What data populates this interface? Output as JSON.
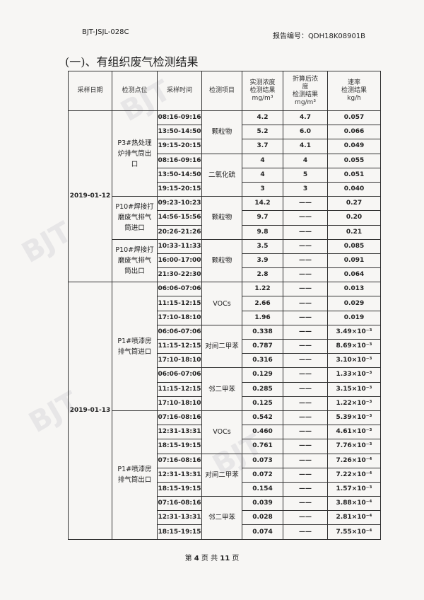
{
  "header": {
    "form_code": "BJT-JSJL-028C",
    "report_no_label": "报告编号：",
    "report_no": "QDH18K08901B"
  },
  "section_title": "(一)、有组织废气检测结果",
  "table": {
    "headers": [
      "采样日期",
      "检测点位",
      "采样时间",
      "检测项目",
      "实测浓度\n检测结果\nmg/m³",
      "折算后浓\n度\n检测结果\nmg/m³",
      "速率\n检测结果\nkg/h"
    ],
    "groups": [
      {
        "date": "2019-01-12",
        "points": [
          {
            "name": "P3#热处理炉排气筒出口",
            "items": [
              {
                "name": "颗粒物",
                "rows": [
                  [
                    "08:16-09:16",
                    "4.2",
                    "4.7",
                    "0.057"
                  ],
                  [
                    "13:50-14:50",
                    "5.2",
                    "6.0",
                    "0.066"
                  ],
                  [
                    "19:15-20:15",
                    "3.7",
                    "4.1",
                    "0.049"
                  ]
                ]
              },
              {
                "name": "二氧化硫",
                "rows": [
                  [
                    "08:16-09:16",
                    "4",
                    "4",
                    "0.055"
                  ],
                  [
                    "13:50-14:50",
                    "4",
                    "5",
                    "0.051"
                  ],
                  [
                    "19:15-20:15",
                    "3",
                    "3",
                    "0.040"
                  ]
                ]
              }
            ]
          },
          {
            "name": "P10#焊接打磨废气排气筒进口",
            "items": [
              {
                "name": "颗粒物",
                "rows": [
                  [
                    "09:23-10:23",
                    "14.2",
                    "——",
                    "0.27"
                  ],
                  [
                    "14:56-15:56",
                    "9.7",
                    "——",
                    "0.20"
                  ],
                  [
                    "20:26-21:26",
                    "9.8",
                    "——",
                    "0.21"
                  ]
                ]
              }
            ]
          },
          {
            "name": "P10#焊接打磨废气排气筒出口",
            "items": [
              {
                "name": "颗粒物",
                "rows": [
                  [
                    "10:33-11:33",
                    "3.5",
                    "——",
                    "0.085"
                  ],
                  [
                    "16:00-17:00",
                    "3.9",
                    "——",
                    "0.091"
                  ],
                  [
                    "21:30-22:30",
                    "2.8",
                    "——",
                    "0.064"
                  ]
                ]
              }
            ]
          }
        ]
      },
      {
        "date": "2019-01-13",
        "points": [
          {
            "name": "P1#喷漆房排气筒进口",
            "items": [
              {
                "name": "VOCs",
                "rows": [
                  [
                    "06:06-07:06",
                    "1.22",
                    "——",
                    "0.013"
                  ],
                  [
                    "11:15-12:15",
                    "2.66",
                    "——",
                    "0.029"
                  ],
                  [
                    "17:10-18:10",
                    "1.96",
                    "——",
                    "0.019"
                  ]
                ]
              },
              {
                "name": "对间二甲苯",
                "rows": [
                  [
                    "06:06-07:06",
                    "0.338",
                    "——",
                    "3.49×10⁻³"
                  ],
                  [
                    "11:15-12:15",
                    "0.787",
                    "——",
                    "8.69×10⁻³"
                  ],
                  [
                    "17:10-18:10",
                    "0.316",
                    "——",
                    "3.10×10⁻³"
                  ]
                ]
              },
              {
                "name": "邻二甲苯",
                "rows": [
                  [
                    "06:06-07:06",
                    "0.129",
                    "——",
                    "1.33×10⁻³"
                  ],
                  [
                    "11:15-12:15",
                    "0.285",
                    "——",
                    "3.15×10⁻³"
                  ],
                  [
                    "17:10-18:10",
                    "0.125",
                    "——",
                    "1.22×10⁻³"
                  ]
                ]
              }
            ]
          },
          {
            "name": "P1#喷漆房排气筒出口",
            "items": [
              {
                "name": "VOCs",
                "rows": [
                  [
                    "07:16-08:16",
                    "0.542",
                    "——",
                    "5.39×10⁻³"
                  ],
                  [
                    "12:31-13:31",
                    "0.460",
                    "——",
                    "4.61×10⁻³"
                  ],
                  [
                    "18:15-19:15",
                    "0.761",
                    "——",
                    "7.76×10⁻³"
                  ]
                ]
              },
              {
                "name": "对间二甲苯",
                "rows": [
                  [
                    "07:16-08:16",
                    "0.073",
                    "——",
                    "7.26×10⁻⁴"
                  ],
                  [
                    "12:31-13:31",
                    "0.072",
                    "——",
                    "7.22×10⁻⁴"
                  ],
                  [
                    "18:15-19:15",
                    "0.154",
                    "——",
                    "1.57×10⁻³"
                  ]
                ]
              },
              {
                "name": "邻二甲苯",
                "rows": [
                  [
                    "07:16-08:16",
                    "0.039",
                    "——",
                    "3.88×10⁻⁴"
                  ],
                  [
                    "12:31-13:31",
                    "0.028",
                    "——",
                    "2.81×10⁻⁴"
                  ],
                  [
                    "18:15-19:15",
                    "0.074",
                    "——",
                    "7.55×10⁻⁴"
                  ]
                ]
              }
            ]
          }
        ]
      }
    ]
  },
  "footer": {
    "page_prefix": "第",
    "page": "4",
    "page_mid": "页 共",
    "total": "11",
    "page_suffix": "页"
  },
  "watermark": "BJT"
}
